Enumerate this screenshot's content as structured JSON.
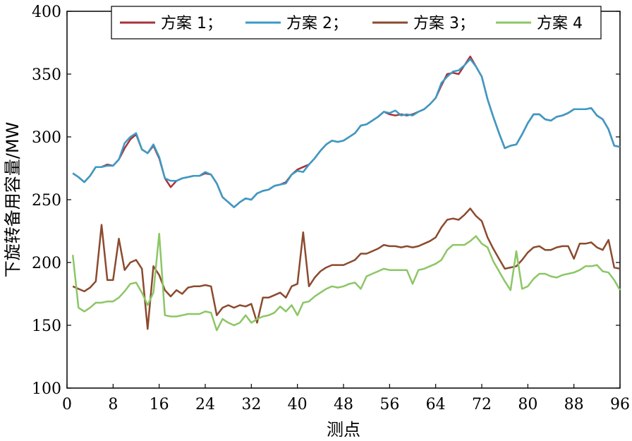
{
  "chart_data": {
    "type": "line",
    "title": "",
    "xlabel": "测点",
    "ylabel": "下旋转备用容量/MW",
    "xlim": [
      0,
      96
    ],
    "ylim": [
      100,
      400
    ],
    "xticks": [
      0,
      8,
      16,
      24,
      32,
      40,
      48,
      56,
      64,
      72,
      80,
      88,
      96
    ],
    "yticks": [
      100,
      150,
      200,
      250,
      300,
      350,
      400
    ],
    "xtick_labels": [
      "0",
      "8",
      "16",
      "24",
      "32",
      "40",
      "48",
      "56",
      "64",
      "72",
      "80",
      "88",
      "96"
    ],
    "ytick_labels": [
      "100",
      "150",
      "200",
      "250",
      "300",
      "350",
      "400"
    ],
    "grid": false,
    "legend_position": "top",
    "series": [
      {
        "name": "方案 1；",
        "color": "#A8323A",
        "x": [
          1,
          2,
          3,
          4,
          5,
          6,
          7,
          8,
          9,
          10,
          11,
          12,
          13,
          14,
          15,
          16,
          17,
          18,
          19,
          20,
          21,
          22,
          23,
          24,
          25,
          26,
          27,
          28,
          29,
          30,
          31,
          32,
          33,
          34,
          35,
          36,
          37,
          38,
          39,
          40,
          41,
          42,
          43,
          44,
          45,
          46,
          47,
          48,
          49,
          50,
          51,
          52,
          53,
          54,
          55,
          56,
          57,
          58,
          59,
          60,
          61,
          62,
          63,
          64,
          65,
          66,
          67,
          68,
          69,
          70,
          71,
          72,
          73,
          74,
          75,
          76,
          77,
          78,
          79,
          80,
          81,
          82,
          83,
          84,
          85,
          86,
          87,
          88,
          89,
          90,
          91,
          92,
          93,
          94,
          95,
          96
        ],
        "values": [
          271,
          268,
          264,
          269,
          276,
          276,
          278,
          277,
          282,
          291,
          298,
          302,
          290,
          287,
          293,
          283,
          267,
          260,
          265,
          267,
          268,
          269,
          269,
          271,
          270,
          263,
          252,
          248,
          244,
          248,
          251,
          250,
          255,
          257,
          258,
          261,
          262,
          264,
          270,
          274,
          276,
          278,
          283,
          289,
          294,
          297,
          296,
          297,
          300,
          303,
          309,
          310,
          313,
          316,
          320,
          318,
          317,
          318,
          317,
          318,
          320,
          322,
          326,
          331,
          341,
          350,
          351,
          350,
          357,
          364,
          356,
          348,
          330,
          316,
          303,
          291,
          293,
          294,
          302,
          311,
          318,
          318,
          314,
          313,
          316,
          317,
          319,
          322,
          322,
          322,
          323,
          317,
          314,
          306,
          293,
          292
        ],
        "width": 2.5
      },
      {
        "name": "方案 2；",
        "color": "#3A9BC6",
        "x": [
          1,
          2,
          3,
          4,
          5,
          6,
          7,
          8,
          9,
          10,
          11,
          12,
          13,
          14,
          15,
          16,
          17,
          18,
          19,
          20,
          21,
          22,
          23,
          24,
          25,
          26,
          27,
          28,
          29,
          30,
          31,
          32,
          33,
          34,
          35,
          36,
          37,
          38,
          39,
          40,
          41,
          42,
          43,
          44,
          45,
          46,
          47,
          48,
          49,
          50,
          51,
          52,
          53,
          54,
          55,
          56,
          57,
          58,
          59,
          60,
          61,
          62,
          63,
          64,
          65,
          66,
          67,
          68,
          69,
          70,
          71,
          72,
          73,
          74,
          75,
          76,
          77,
          78,
          79,
          80,
          81,
          82,
          83,
          84,
          85,
          86,
          87,
          88,
          89,
          90,
          91,
          92,
          93,
          94,
          95,
          96
        ],
        "values": [
          271,
          268,
          264,
          269,
          276,
          276,
          277,
          277,
          282,
          295,
          300,
          303,
          290,
          287,
          294,
          284,
          267,
          265,
          265,
          267,
          268,
          269,
          269,
          272,
          270,
          263,
          252,
          248,
          244,
          248,
          251,
          250,
          255,
          257,
          258,
          261,
          262,
          263,
          270,
          273,
          272,
          278,
          283,
          289,
          294,
          297,
          296,
          297,
          300,
          303,
          309,
          310,
          313,
          316,
          320,
          319,
          321,
          317,
          318,
          317,
          320,
          322,
          326,
          331,
          343,
          348,
          352,
          353,
          357,
          362,
          356,
          348,
          330,
          316,
          303,
          291,
          293,
          294,
          302,
          311,
          318,
          318,
          314,
          313,
          316,
          317,
          319,
          322,
          322,
          322,
          323,
          317,
          314,
          306,
          293,
          292
        ]
      },
      {
        "name": "方案 3；",
        "color": "#8B4A2E",
        "x": [
          1,
          2,
          3,
          4,
          5,
          6,
          7,
          8,
          9,
          10,
          11,
          12,
          13,
          14,
          15,
          16,
          17,
          18,
          19,
          20,
          21,
          22,
          23,
          24,
          25,
          26,
          27,
          28,
          29,
          30,
          31,
          32,
          33,
          34,
          35,
          36,
          37,
          38,
          39,
          40,
          41,
          42,
          43,
          44,
          45,
          46,
          47,
          48,
          49,
          50,
          51,
          52,
          53,
          54,
          55,
          56,
          57,
          58,
          59,
          60,
          61,
          62,
          63,
          64,
          65,
          66,
          67,
          68,
          69,
          70,
          71,
          72,
          73,
          74,
          75,
          76,
          77,
          78,
          79,
          80,
          81,
          82,
          83,
          84,
          85,
          86,
          87,
          88,
          89,
          90,
          91,
          92,
          93,
          94,
          95,
          96
        ],
        "values": [
          181,
          179,
          177,
          180,
          185,
          230,
          186,
          186,
          219,
          194,
          200,
          202,
          195,
          147,
          197,
          190,
          178,
          173,
          178,
          175,
          180,
          181,
          181,
          182,
          181,
          158,
          164,
          166,
          164,
          166,
          165,
          167,
          152,
          172,
          172,
          174,
          176,
          172,
          181,
          183,
          224,
          181,
          188,
          193,
          196,
          198,
          198,
          198,
          200,
          202,
          207,
          207,
          209,
          211,
          214,
          213,
          213,
          212,
          213,
          212,
          213,
          215,
          217,
          220,
          228,
          234,
          235,
          234,
          238,
          243,
          237,
          233,
          220,
          211,
          203,
          195,
          196,
          197,
          202,
          208,
          212,
          213,
          210,
          210,
          212,
          213,
          213,
          203,
          215,
          215,
          216,
          212,
          210,
          218,
          196,
          195
        ]
      },
      {
        "name": "方案 4",
        "color": "#8CC665",
        "x": [
          1,
          2,
          3,
          4,
          5,
          6,
          7,
          8,
          9,
          10,
          11,
          12,
          13,
          14,
          15,
          16,
          17,
          18,
          19,
          20,
          21,
          22,
          23,
          24,
          25,
          26,
          27,
          28,
          29,
          30,
          31,
          32,
          33,
          34,
          35,
          36,
          37,
          38,
          39,
          40,
          41,
          42,
          43,
          44,
          45,
          46,
          47,
          48,
          49,
          50,
          51,
          52,
          53,
          54,
          55,
          56,
          57,
          58,
          59,
          60,
          61,
          62,
          63,
          64,
          65,
          66,
          67,
          68,
          69,
          70,
          71,
          72,
          73,
          74,
          75,
          76,
          77,
          78,
          79,
          80,
          81,
          82,
          83,
          84,
          85,
          86,
          87,
          88,
          89,
          90,
          91,
          92,
          93,
          94,
          95,
          96
        ],
        "values": [
          206,
          164,
          161,
          164,
          168,
          168,
          169,
          169,
          172,
          177,
          183,
          184,
          176,
          166,
          176,
          223,
          158,
          157,
          157,
          158,
          159,
          159,
          159,
          161,
          160,
          146,
          155,
          152,
          150,
          152,
          158,
          152,
          155,
          157,
          158,
          160,
          165,
          161,
          166,
          158,
          168,
          169,
          173,
          176,
          179,
          181,
          180,
          181,
          183,
          184,
          179,
          189,
          191,
          193,
          195,
          194,
          194,
          194,
          194,
          183,
          194,
          195,
          197,
          199,
          202,
          210,
          214,
          214,
          214,
          217,
          221,
          215,
          212,
          201,
          193,
          185,
          178,
          209,
          179,
          181,
          187,
          191,
          191,
          189,
          188,
          190,
          191,
          192,
          194,
          197,
          197,
          198,
          193,
          192,
          186,
          178
        ]
      }
    ]
  }
}
